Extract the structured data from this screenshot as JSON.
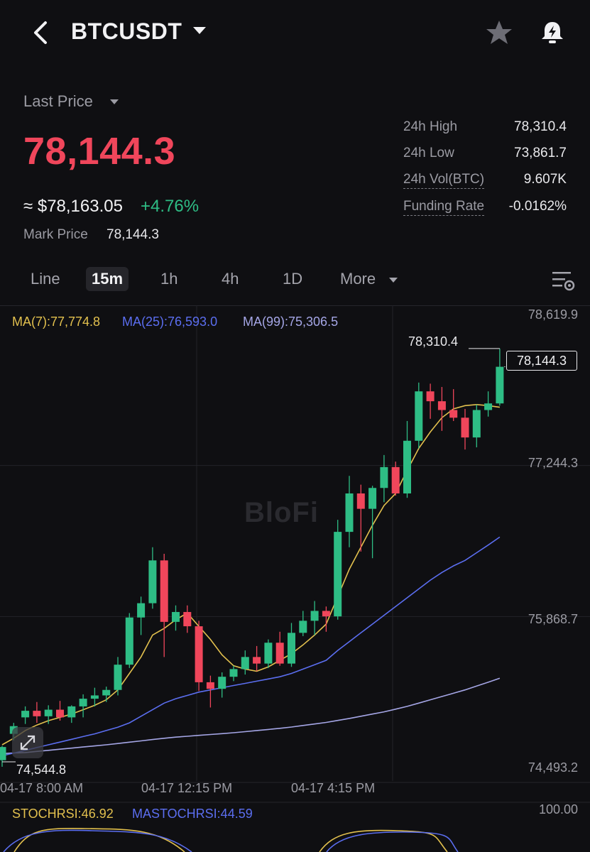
{
  "header": {
    "symbol": "BTCUSDT"
  },
  "price": {
    "last_price_label": "Last Price",
    "last_price": "78,144.3",
    "usd_equiv": "≈ $78,163.05",
    "change": "+4.76%",
    "mark_label": "Mark Price",
    "mark_value": "78,144.3"
  },
  "stats": [
    {
      "label": "24h High",
      "value": "78,310.4"
    },
    {
      "label": "24h Low",
      "value": "73,861.7"
    },
    {
      "label": "24h Vol(BTC)",
      "value": "9.607K"
    },
    {
      "label": "Funding Rate",
      "value": "-0.0162%"
    }
  ],
  "tabs": [
    "Line",
    "15m",
    "1h",
    "4h",
    "1D",
    "More"
  ],
  "active_tab": "15m",
  "indicators": {
    "ma7": "MA(7):77,774.8",
    "ma25": "MA(25):76,593.0",
    "ma99": "MA(99):75,306.5"
  },
  "chart": {
    "y_ticks": [
      "78,619.9",
      "77,244.3",
      "75,868.7",
      "74,493.2"
    ],
    "x_ticks": [
      "04-17 8:00 AM",
      "04-17 12:15 PM",
      "04-17 4:15 PM"
    ],
    "high_marker": "78,310.4",
    "low_marker": "74,544.8",
    "current_price": "78,144.3",
    "watermark": "BloFi"
  },
  "stochrsi": {
    "stoch": "STOCHRSI:46.92",
    "mastoch": "MASTOCHRSI:44.59",
    "max": "100.00"
  },
  "colors": {
    "up": "#2ebd85",
    "down": "#f0465b",
    "ma7": "#e2c04e",
    "ma25": "#5b6ef0",
    "ma99": "#a5a6e6",
    "background": "#0f0f12"
  },
  "chart_data": {
    "type": "candlestick",
    "ylim": [
      74493.2,
      78619.9
    ],
    "candles": [
      {
        "o": 74560,
        "h": 74690,
        "l": 74500,
        "c": 74680
      },
      {
        "o": 74800,
        "h": 74900,
        "l": 74740,
        "c": 74870
      },
      {
        "o": 74950,
        "h": 75050,
        "l": 74890,
        "c": 75010
      },
      {
        "o": 75010,
        "h": 75090,
        "l": 74900,
        "c": 74960
      },
      {
        "o": 74960,
        "h": 75060,
        "l": 74890,
        "c": 75020
      },
      {
        "o": 75020,
        "h": 75100,
        "l": 74920,
        "c": 74950
      },
      {
        "o": 74950,
        "h": 75060,
        "l": 74900,
        "c": 75050
      },
      {
        "o": 75050,
        "h": 75160,
        "l": 74950,
        "c": 75120
      },
      {
        "o": 75120,
        "h": 75220,
        "l": 75050,
        "c": 75150
      },
      {
        "o": 75150,
        "h": 75230,
        "l": 75090,
        "c": 75200
      },
      {
        "o": 75200,
        "h": 75500,
        "l": 75150,
        "c": 75430
      },
      {
        "o": 75430,
        "h": 75900,
        "l": 75400,
        "c": 75860
      },
      {
        "o": 75860,
        "h": 76050,
        "l": 75700,
        "c": 75990
      },
      {
        "o": 75990,
        "h": 76500,
        "l": 75940,
        "c": 76380
      },
      {
        "o": 76380,
        "h": 76440,
        "l": 75500,
        "c": 75820
      },
      {
        "o": 75820,
        "h": 75970,
        "l": 75740,
        "c": 75910
      },
      {
        "o": 75910,
        "h": 75970,
        "l": 75720,
        "c": 75780
      },
      {
        "o": 75780,
        "h": 75830,
        "l": 75190,
        "c": 75270
      },
      {
        "o": 75270,
        "h": 75330,
        "l": 75040,
        "c": 75210
      },
      {
        "o": 75210,
        "h": 75360,
        "l": 75130,
        "c": 75320
      },
      {
        "o": 75320,
        "h": 75420,
        "l": 75280,
        "c": 75390
      },
      {
        "o": 75390,
        "h": 75560,
        "l": 75340,
        "c": 75500
      },
      {
        "o": 75500,
        "h": 75600,
        "l": 75370,
        "c": 75440
      },
      {
        "o": 75440,
        "h": 75660,
        "l": 75400,
        "c": 75630
      },
      {
        "o": 75630,
        "h": 75730,
        "l": 75420,
        "c": 75440
      },
      {
        "o": 75440,
        "h": 75810,
        "l": 75410,
        "c": 75720
      },
      {
        "o": 75720,
        "h": 75920,
        "l": 75690,
        "c": 75830
      },
      {
        "o": 75830,
        "h": 76010,
        "l": 75700,
        "c": 75920
      },
      {
        "o": 75920,
        "h": 75960,
        "l": 75730,
        "c": 75870
      },
      {
        "o": 75870,
        "h": 76750,
        "l": 75840,
        "c": 76640
      },
      {
        "o": 76640,
        "h": 77150,
        "l": 76500,
        "c": 76990
      },
      {
        "o": 76990,
        "h": 77070,
        "l": 76460,
        "c": 76850
      },
      {
        "o": 76850,
        "h": 77060,
        "l": 76400,
        "c": 77040
      },
      {
        "o": 77040,
        "h": 77340,
        "l": 76910,
        "c": 77230
      },
      {
        "o": 77230,
        "h": 77280,
        "l": 76970,
        "c": 76990
      },
      {
        "o": 76990,
        "h": 77650,
        "l": 76950,
        "c": 77470
      },
      {
        "o": 77470,
        "h": 78000,
        "l": 77400,
        "c": 77920
      },
      {
        "o": 77920,
        "h": 77990,
        "l": 77670,
        "c": 77830
      },
      {
        "o": 77830,
        "h": 77960,
        "l": 77560,
        "c": 77750
      },
      {
        "o": 77750,
        "h": 77940,
        "l": 77650,
        "c": 77680
      },
      {
        "o": 77680,
        "h": 77760,
        "l": 77390,
        "c": 77500
      },
      {
        "o": 77500,
        "h": 77800,
        "l": 77410,
        "c": 77750
      },
      {
        "o": 77750,
        "h": 77920,
        "l": 77690,
        "c": 77810
      },
      {
        "o": 77810,
        "h": 78310,
        "l": 77790,
        "c": 78144
      }
    ],
    "ma7": [
      74700,
      74760,
      74830,
      74880,
      74920,
      74950,
      74980,
      75020,
      75060,
      75110,
      75200,
      75350,
      75500,
      75700,
      75760,
      75840,
      75900,
      75780,
      75660,
      75520,
      75420,
      75390,
      75370,
      75410,
      75470,
      75530,
      75610,
      75700,
      75800,
      76050,
      76300,
      76500,
      76700,
      76880,
      76990,
      77200,
      77400,
      77550,
      77680,
      77760,
      77790,
      77800,
      77790,
      77775
    ],
    "ma25": [
      74600,
      74625,
      74650,
      74675,
      74700,
      74725,
      74750,
      74775,
      74800,
      74830,
      74860,
      74900,
      74960,
      75020,
      75080,
      75120,
      75150,
      75180,
      75200,
      75220,
      75240,
      75260,
      75280,
      75300,
      75320,
      75350,
      75390,
      75430,
      75470,
      75560,
      75640,
      75720,
      75800,
      75880,
      75960,
      76040,
      76120,
      76200,
      76270,
      76330,
      76380,
      76450,
      76520,
      76593
    ],
    "ma99": [
      74620,
      74625,
      74630,
      74640,
      74650,
      74660,
      74670,
      74680,
      74690,
      74700,
      74712,
      74724,
      74736,
      74748,
      74760,
      74770,
      74778,
      74786,
      74794,
      74802,
      74810,
      74820,
      74830,
      74840,
      74850,
      74862,
      74876,
      74890,
      74904,
      74922,
      74940,
      74960,
      74980,
      75000,
      75025,
      75050,
      75080,
      75110,
      75140,
      75170,
      75200,
      75235,
      75270,
      75306
    ]
  }
}
